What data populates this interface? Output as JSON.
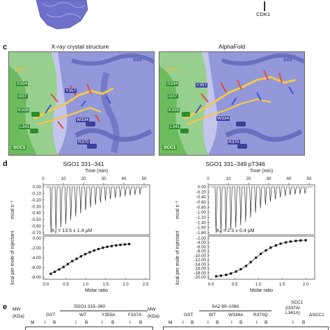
{
  "top": {
    "cdk1_label": "CDK1"
  },
  "panel_c": {
    "letter": "c",
    "left_title": "X-ray crystal structure",
    "right_title": "AlphaFold",
    "labels": {
      "sgo1": "SGO1",
      "sa2": "SA2",
      "scc1": "SCC1"
    },
    "residues_left": [
      "S334",
      "I337",
      "Y357",
      "K338",
      "L341",
      "W334",
      "R370"
    ],
    "residues_right": [
      "S334",
      "I337",
      "Y357",
      "K338",
      "L341",
      "W334",
      "R370"
    ],
    "colors": {
      "sa2": "#7b7fd0",
      "scc1": "#6fbf5e",
      "sgo1": "#f2c84b",
      "bg": "#b9bce8"
    }
  },
  "panel_d": {
    "letter": "d",
    "left": {
      "title": "SGO1 331–341",
      "xlabel_top": "Time (min)",
      "ylabel_top": "mcal s⁻¹",
      "ylabel_bottom": "kcal per mole of injectant",
      "xlabel_bottom": "Molar ratio",
      "kd": "K",
      "kd_sub": "d",
      "kd_value": " = 13.5 ± 1.4 μM",
      "time_ticks": [
        "0",
        "10",
        "20",
        "30",
        "40",
        "50"
      ],
      "top_y_ticks": [
        "0.00",
        "-0.10",
        "-0.20",
        "-0.30",
        "-0.40",
        "-0.50",
        "-0.60",
        "-0.70"
      ],
      "bottom_y_ticks": [
        "0.00",
        "-2.00",
        "-4.00",
        "-6.00",
        "-8.00"
      ],
      "ratio_ticks": [
        "0.0",
        "0.5",
        "1.0",
        "1.5",
        "2.0",
        "2.5"
      ]
    },
    "right": {
      "title": "SGO1 331–349 pT346",
      "xlabel_top": "Time (min)",
      "ylabel_top": "mcal s⁻¹",
      "ylabel_bottom": "kcal per mole of injectant",
      "xlabel_bottom": "Molar ratio",
      "kd": "K",
      "kd_sub": "d",
      "kd_value": " = 2.3 ± 0.4 μM",
      "time_ticks": [
        "0",
        "10",
        "20",
        "30",
        "40",
        "50"
      ],
      "top_y_ticks": [
        "0.00",
        "-0.20",
        "-0.40",
        "-0.60",
        "-0.80",
        "-1.00",
        "-1.20",
        "-1.40",
        "-1.60",
        "-1.80"
      ],
      "bottom_y_ticks": [
        "-2.00",
        "-4.00",
        "-6.00",
        "-8.00",
        "-10.00",
        "-12.00",
        "-14.00",
        "-16.00",
        "-18.00",
        "-20.00"
      ],
      "ratio_ticks": [
        "0.0",
        "0.5",
        "1.0",
        "1.5",
        "2.0"
      ]
    }
  },
  "chart_data": [
    {
      "type": "scatter",
      "title": "SGO1 331–341",
      "xlabel": "Molar ratio",
      "ylabel": "kcal per mole of injectant",
      "xlim": [
        0.0,
        2.5
      ],
      "ylim": [
        -8.5,
        0.0
      ],
      "x": [
        0.12,
        0.22,
        0.33,
        0.44,
        0.55,
        0.66,
        0.77,
        0.88,
        0.99,
        1.1,
        1.21,
        1.32,
        1.43,
        1.54,
        1.65,
        1.76,
        1.87,
        1.98,
        2.09
      ],
      "y": [
        -7.3,
        -6.9,
        -6.4,
        -5.9,
        -5.3,
        -4.7,
        -4.2,
        -3.7,
        -3.25,
        -2.85,
        -2.5,
        -2.2,
        -1.95,
        -1.75,
        -1.6,
        -1.45,
        -1.35,
        -1.25,
        -1.18
      ]
    },
    {
      "type": "scatter",
      "title": "SGO1 331–349 pT346",
      "xlabel": "Molar ratio",
      "ylabel": "kcal per mole of injectant",
      "xlim": [
        0.0,
        2.1
      ],
      "ylim": [
        -20.5,
        -1.5
      ],
      "x": [
        0.11,
        0.21,
        0.32,
        0.42,
        0.53,
        0.63,
        0.74,
        0.84,
        0.95,
        1.05,
        1.16,
        1.26,
        1.37,
        1.47,
        1.58,
        1.68,
        1.79,
        1.89,
        2.0
      ],
      "y": [
        -19.6,
        -19.3,
        -18.9,
        -18.3,
        -17.4,
        -16.3,
        -14.8,
        -13.0,
        -11.0,
        -9.2,
        -7.6,
        -6.3,
        -5.3,
        -4.5,
        -3.9,
        -3.5,
        -3.2,
        -3.0,
        -2.9
      ]
    }
  ],
  "panel_e": {
    "letter": "e",
    "left": {
      "mw": "MW",
      "kda": "(KDa)",
      "construct": "SGO1 315–360",
      "cols": [
        "GST",
        "WT",
        "Y355A",
        "F337A"
      ],
      "m": "M",
      "lanes": [
        "I",
        "B",
        "I",
        "B",
        "I",
        "B",
        "I",
        "B"
      ]
    },
    "right": {
      "mw": "MW",
      "kda": "(KDa)",
      "construct": "SA2 80–1060",
      "cols": [
        "GST",
        "WT",
        "W334A",
        "R370Q"
      ],
      "scc1": "SCC1",
      "scc1_sub": "(I337A/ L341A)",
      "dscc1": "ΔSCC1",
      "m": "M",
      "lanes": [
        "I",
        "B",
        "I",
        "B",
        "I",
        "B",
        "I",
        "B",
        "I",
        "B"
      ]
    }
  }
}
